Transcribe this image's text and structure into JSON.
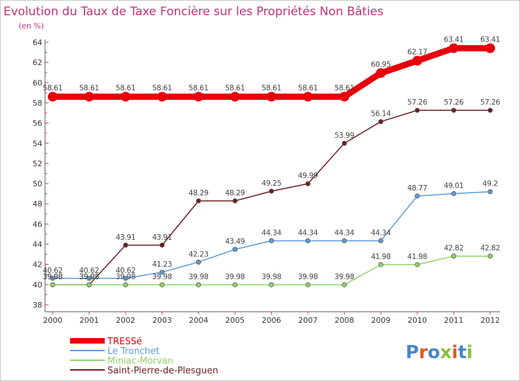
{
  "chart_data": {
    "type": "line",
    "title": "Evolution du Taux de Taxe Foncière sur les Propriétés Non Bâties",
    "unit_label": "(en %)",
    "x": [
      "2000",
      "2001",
      "2002",
      "2003",
      "2004",
      "2005",
      "2006",
      "2007",
      "2008",
      "2009",
      "2010",
      "2011",
      "2012"
    ],
    "ylim": [
      38,
      64
    ],
    "yticks": [
      "38",
      "40",
      "42",
      "44",
      "46",
      "48",
      "50",
      "52",
      "54",
      "56",
      "58",
      "60",
      "62",
      "64"
    ],
    "grid": false,
    "legend_position": "bottom-left",
    "series": [
      {
        "name": "TRESSé",
        "color": "#e8000b",
        "values": [
          58.61,
          58.61,
          58.61,
          58.61,
          58.61,
          58.61,
          58.61,
          58.61,
          58.61,
          60.95,
          62.17,
          63.41,
          63.41
        ],
        "labels": [
          "58.61",
          "58.61",
          "58.61",
          "58.61",
          "58.61",
          "58.61",
          "58.61",
          "58.61",
          "58.61",
          "60.95",
          "62.17",
          "63.41",
          "63.41"
        ]
      },
      {
        "name": "Le Tronchet",
        "color": "#5b9bd5",
        "values": [
          40.62,
          40.62,
          40.62,
          41.23,
          42.23,
          43.49,
          44.34,
          44.34,
          44.34,
          44.34,
          48.77,
          49.01,
          49.2
        ],
        "labels": [
          "40.62",
          "40.62",
          "40.62",
          "41.23",
          "42.23",
          "43.49",
          "44.34",
          "44.34",
          "44.34",
          "44.34",
          "48.77",
          "49.01",
          "49.2"
        ]
      },
      {
        "name": "Miniac-Morvan",
        "color": "#90d26a",
        "values": [
          39.98,
          39.98,
          39.98,
          39.98,
          39.98,
          39.98,
          39.98,
          39.98,
          39.98,
          41.98,
          41.98,
          42.82,
          42.82
        ],
        "labels": [
          "39.98",
          "39.98",
          "39.98",
          "39.98",
          "39.98",
          "39.98",
          "39.98",
          "39.98",
          "39.98",
          "41.98",
          "41.98",
          "42.82",
          "42.82"
        ]
      },
      {
        "name": "Saint-Pierre-de-Plesguen",
        "color": "#6b1d22",
        "values": [
          39.98,
          39.98,
          43.91,
          43.91,
          48.29,
          48.29,
          49.25,
          49.99,
          53.99,
          56.14,
          57.26,
          57.26,
          57.26
        ],
        "labels": [
          "39.98",
          "39.98",
          "43.91",
          "43.91",
          "48.29",
          "48.29",
          "49.25",
          "49.99",
          "53.99",
          "56.14",
          "57.26",
          "57.26",
          "57.26"
        ]
      }
    ]
  },
  "logo": {
    "text": "Proxiti",
    "letter_colors": [
      "#4a86c8",
      "#e05a1e",
      "#4a86c8",
      "#8bbf3a",
      "#e05a1e",
      "#4a86c8",
      "#8bbf3a"
    ]
  }
}
